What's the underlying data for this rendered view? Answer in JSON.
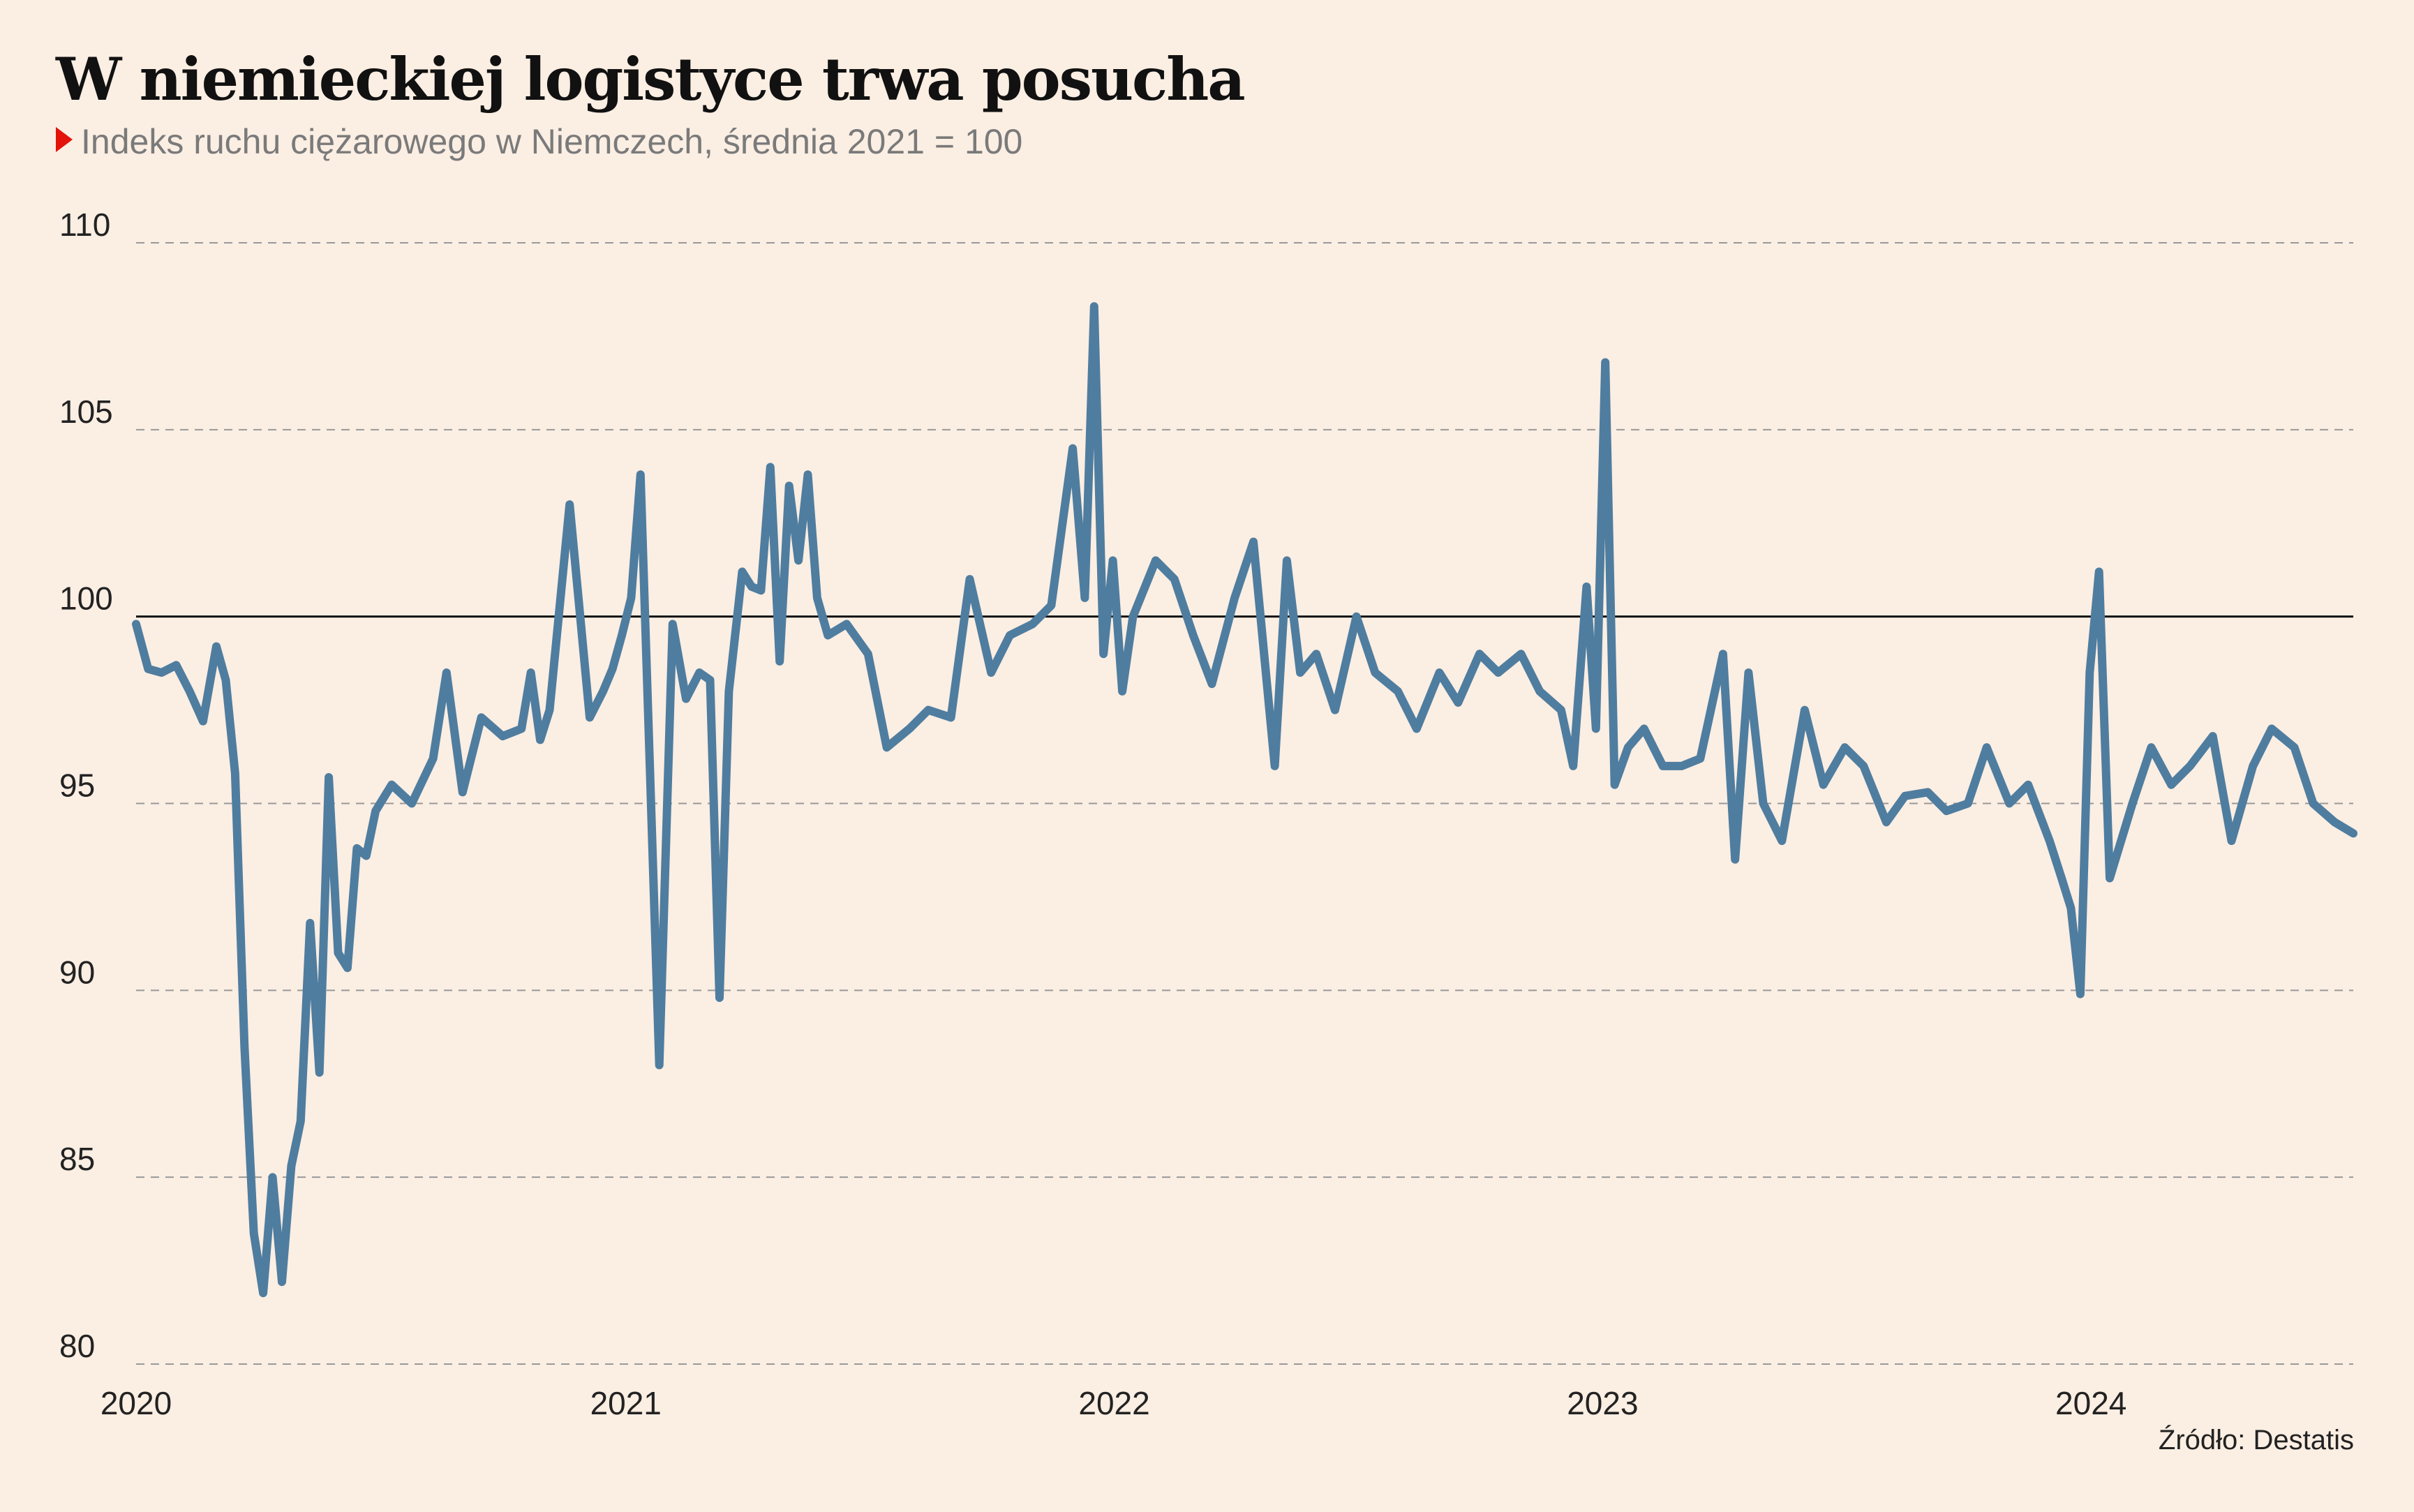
{
  "title": "W niemieckiej logistyce trwa posucha",
  "subtitle": "Indeks ruchu ciężarowego w Niemczech, średnia 2021 = 100",
  "source": "Źródło: Destatis",
  "colors": {
    "background": "#fbeee3",
    "line": "#4f7d9f",
    "marker": "#e3120b",
    "reference": "#111111",
    "grid": "#999999"
  },
  "chart_data": {
    "type": "line",
    "title": "W niemieckiej logistyce trwa posucha",
    "subtitle": "Indeks ruchu ciężarowego w Niemczech, średnia 2021 = 100",
    "xlabel": "",
    "ylabel": "",
    "xlim": [
      "2020-01-01",
      "2024-07-15"
    ],
    "ylim": [
      80,
      110
    ],
    "yticks": [
      80,
      85,
      90,
      95,
      100,
      105,
      110
    ],
    "xticks": [
      "2020",
      "2021",
      "2022",
      "2023",
      "2024"
    ],
    "reference_line": 100,
    "grid": "horizontal dashed",
    "series": [
      {
        "x": [
          "2020-01-01",
          "2020-01-10",
          "2020-01-20",
          "2020-01-31",
          "2020-02-10",
          "2020-02-20",
          "2020-03-01",
          "2020-03-08",
          "2020-03-15",
          "2020-03-22",
          "2020-03-29",
          "2020-04-05",
          "2020-04-12",
          "2020-04-19",
          "2020-04-26",
          "2020-05-03",
          "2020-05-10",
          "2020-05-17",
          "2020-05-24",
          "2020-05-31",
          "2020-06-07",
          "2020-06-14",
          "2020-06-21",
          "2020-06-28",
          "2020-07-10",
          "2020-07-25",
          "2020-08-10",
          "2020-08-20",
          "2020-09-01",
          "2020-09-15",
          "2020-10-01",
          "2020-10-15",
          "2020-10-22",
          "2020-10-29",
          "2020-11-05",
          "2020-11-20",
          "2020-12-05",
          "2020-12-15",
          "2020-12-22",
          "2020-12-29",
          "2021-01-05",
          "2021-01-12",
          "2021-01-19",
          "2021-01-26",
          "2021-02-05",
          "2021-02-15",
          "2021-02-25",
          "2021-03-05",
          "2021-03-12",
          "2021-03-19",
          "2021-03-29",
          "2021-04-05",
          "2021-04-12",
          "2021-04-19",
          "2021-04-26",
          "2021-05-03",
          "2021-05-10",
          "2021-05-17",
          "2021-05-24",
          "2021-06-01",
          "2021-06-15",
          "2021-07-01",
          "2021-07-15",
          "2021-08-01",
          "2021-08-15",
          "2021-09-01",
          "2021-09-15",
          "2021-10-01",
          "2021-10-15",
          "2021-11-01",
          "2021-11-15",
          "2021-12-01",
          "2021-12-10",
          "2021-12-17",
          "2021-12-24",
          "2021-12-31",
          "2022-01-07",
          "2022-01-15",
          "2022-02-01",
          "2022-02-15",
          "2022-03-01",
          "2022-03-15",
          "2022-04-01",
          "2022-04-15",
          "2022-05-01",
          "2022-05-10",
          "2022-05-20",
          "2022-06-01",
          "2022-06-15",
          "2022-07-01",
          "2022-07-15",
          "2022-08-01",
          "2022-08-15",
          "2022-09-01",
          "2022-09-15",
          "2022-10-01",
          "2022-10-15",
          "2022-11-01",
          "2022-11-15",
          "2022-12-01",
          "2022-12-10",
          "2022-12-20",
          "2022-12-27",
          "2023-01-03",
          "2023-01-10",
          "2023-01-20",
          "2023-02-01",
          "2023-02-15",
          "2023-03-01",
          "2023-03-15",
          "2023-04-01",
          "2023-04-10",
          "2023-04-20",
          "2023-05-01",
          "2023-05-15",
          "2023-06-01",
          "2023-06-15",
          "2023-07-01",
          "2023-07-15",
          "2023-08-01",
          "2023-08-15",
          "2023-09-01",
          "2023-09-15",
          "2023-10-01",
          "2023-10-15",
          "2023-11-01",
          "2023-11-15",
          "2023-12-01",
          "2023-12-10",
          "2023-12-17",
          "2023-12-24",
          "2023-12-31",
          "2024-01-07",
          "2024-01-15",
          "2024-02-01",
          "2024-02-15",
          "2024-03-01",
          "2024-03-15",
          "2024-04-01",
          "2024-04-15",
          "2024-05-01",
          "2024-05-15",
          "2024-06-01",
          "2024-06-15",
          "2024-07-01",
          "2024-07-15"
        ],
        "values": [
          99.8,
          98.6,
          98.5,
          98.7,
          98.0,
          97.2,
          99.2,
          98.3,
          95.8,
          88.5,
          83.5,
          81.9,
          85.0,
          82.2,
          85.3,
          86.5,
          91.8,
          87.8,
          95.7,
          91.0,
          90.6,
          93.8,
          93.6,
          94.8,
          95.5,
          95.0,
          96.2,
          98.5,
          95.3,
          97.3,
          96.8,
          97.0,
          98.5,
          96.7,
          97.5,
          103.0,
          97.3,
          98.0,
          98.6,
          99.5,
          100.5,
          103.8,
          95.9,
          88.0,
          99.8,
          97.8,
          98.5,
          98.3,
          89.8,
          98.0,
          101.2,
          100.8,
          100.7,
          104.0,
          98.8,
          103.5,
          101.5,
          103.8,
          100.5,
          99.5,
          99.8,
          99.0,
          96.5,
          97.0,
          97.5,
          97.3,
          101.0,
          98.5,
          99.5,
          99.8,
          100.3,
          104.5,
          100.5,
          108.3,
          99.0,
          101.5,
          98.0,
          100.0,
          101.5,
          101.0,
          99.5,
          98.2,
          100.5,
          102.0,
          96.0,
          101.5,
          98.5,
          99.0,
          97.5,
          100.0,
          98.5,
          98.0,
          97.0,
          98.5,
          97.7,
          99.0,
          98.5,
          99.0,
          98.0,
          97.5,
          96.0,
          100.8,
          97.0,
          106.8,
          95.5,
          96.5,
          97.0,
          96.0,
          96.0,
          96.2,
          99.0,
          93.5,
          98.5,
          95.0,
          94.0,
          97.5,
          95.5,
          96.5,
          96.0,
          94.5,
          95.2,
          95.3,
          94.8,
          95.0,
          96.5,
          95.0,
          95.5,
          94.0,
          93.0,
          92.2,
          89.9,
          98.5,
          101.2,
          93.0,
          95.0,
          96.5,
          95.5,
          96.0,
          96.8,
          94.0,
          96.0,
          97.0,
          96.5,
          95.0,
          94.5,
          94.2
        ]
      }
    ]
  }
}
